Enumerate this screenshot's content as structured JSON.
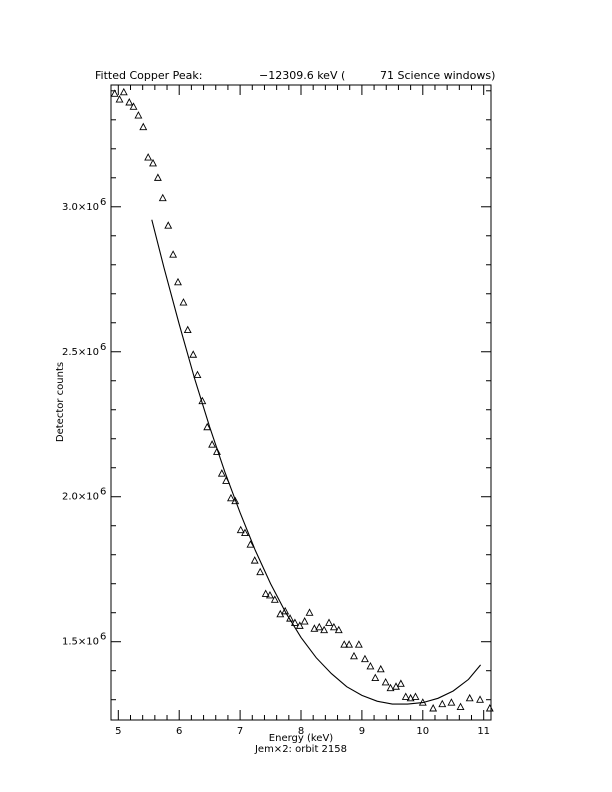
{
  "chart_data": {
    "type": "scatter",
    "title": {
      "prefix": "Fitted Copper Peak:",
      "value": "−12309.6 keV (",
      "suffix": "71 Science windows)"
    },
    "xlabel": "Energy (keV)",
    "ylabel": "Detector counts",
    "subtitle": "Jem×2: orbit 2158",
    "xlim": [
      4.88,
      11.12
    ],
    "ylim": [
      1230000,
      3420000
    ],
    "x_ticks": [
      5,
      6,
      7,
      8,
      9,
      10,
      11
    ],
    "x_tick_labels": [
      "5",
      "6",
      "7",
      "8",
      "9",
      "10",
      "11"
    ],
    "y_ticks": [
      1500000,
      2000000,
      2500000,
      3000000
    ],
    "y_tick_labels": [
      {
        "mant": "1.5×10",
        "exp": "6"
      },
      {
        "mant": "2.0×10",
        "exp": "6"
      },
      {
        "mant": "2.5×10",
        "exp": "6"
      },
      {
        "mant": "3.0×10",
        "exp": "6"
      }
    ],
    "series": [
      {
        "marker": "triangle",
        "x": [
          4.94,
          5.02,
          5.09,
          5.18,
          5.25,
          5.33,
          5.41,
          5.49,
          5.57,
          5.65,
          5.73,
          5.82,
          5.9,
          5.98,
          6.07,
          6.14,
          6.23,
          6.3,
          6.38,
          6.46,
          6.54,
          6.62,
          6.7,
          6.77,
          6.85,
          6.92,
          7.01,
          7.08,
          7.17,
          7.24,
          7.33,
          7.42,
          7.49,
          7.57,
          7.66,
          7.74,
          7.82,
          7.9,
          7.98,
          8.06,
          8.14,
          8.22,
          8.3,
          8.38,
          8.46,
          8.54,
          8.62,
          8.71,
          8.79,
          8.87,
          8.95,
          9.05,
          9.14,
          9.22,
          9.31,
          9.39,
          9.47,
          9.56,
          9.64,
          9.72,
          9.8,
          9.88,
          10.0,
          10.17,
          10.32,
          10.47,
          10.62,
          10.77,
          10.94,
          11.1
        ],
        "y": [
          3390000,
          3370000,
          3395000,
          3360000,
          3345000,
          3315000,
          3275000,
          3170000,
          3150000,
          3100000,
          3030000,
          2935000,
          2835000,
          2740000,
          2670000,
          2575000,
          2490000,
          2420000,
          2330000,
          2240000,
          2180000,
          2155000,
          2080000,
          2055000,
          1995000,
          1985000,
          1885000,
          1875000,
          1835000,
          1780000,
          1740000,
          1665000,
          1660000,
          1645000,
          1595000,
          1605000,
          1580000,
          1565000,
          1555000,
          1570000,
          1600000,
          1545000,
          1550000,
          1540000,
          1565000,
          1550000,
          1540000,
          1490000,
          1490000,
          1450000,
          1490000,
          1440000,
          1415000,
          1375000,
          1405000,
          1360000,
          1340000,
          1345000,
          1355000,
          1310000,
          1305000,
          1310000,
          1290000,
          1270000,
          1285000,
          1290000,
          1275000,
          1305000,
          1300000,
          1270000
        ]
      },
      {
        "marker": "line",
        "x": [
          5.55,
          5.75,
          6.0,
          6.25,
          6.5,
          6.75,
          7.0,
          7.25,
          7.5,
          7.75,
          8.0,
          8.25,
          8.5,
          8.75,
          9.0,
          9.25,
          9.5,
          9.75,
          10.0,
          10.25,
          10.5,
          10.75,
          10.95
        ],
        "y": [
          2955000,
          2790000,
          2595000,
          2410000,
          2240000,
          2085000,
          1945000,
          1815000,
          1700000,
          1600000,
          1515000,
          1445000,
          1390000,
          1345000,
          1315000,
          1295000,
          1285000,
          1285000,
          1290000,
          1305000,
          1330000,
          1370000,
          1420000
        ]
      }
    ]
  }
}
